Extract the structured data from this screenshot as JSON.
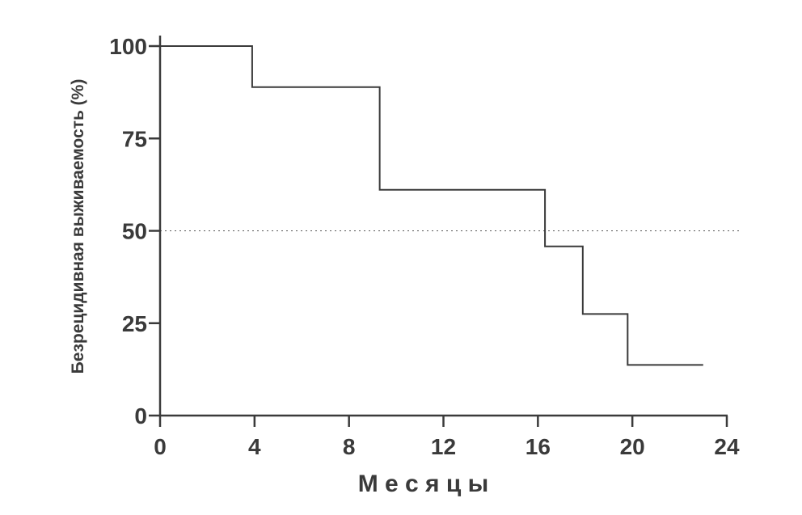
{
  "chart_data": {
    "type": "line",
    "subtype": "kaplan-meier-step",
    "xlabel": "М е с я ц ы",
    "ylabel": "Безрецидивная выживаемость (%)",
    "xlim": [
      0,
      24
    ],
    "ylim": [
      0,
      100
    ],
    "xticks": [
      0,
      4,
      8,
      12,
      16,
      20,
      24
    ],
    "yticks": [
      0,
      25,
      50,
      75,
      100
    ],
    "reference_line": {
      "y": 50,
      "style": "dotted"
    },
    "grid": false,
    "legend": "none",
    "series": [
      {
        "x": [
          0,
          3.9,
          9.3,
          16.3,
          17.9,
          19.8,
          23.0
        ],
        "y": [
          100,
          88.9,
          61.1,
          45.8,
          27.5,
          13.7,
          13.7
        ]
      }
    ],
    "colors": {
      "line": "#3a3a3a",
      "axis": "#3a3a3a",
      "reference": "#555555"
    }
  }
}
